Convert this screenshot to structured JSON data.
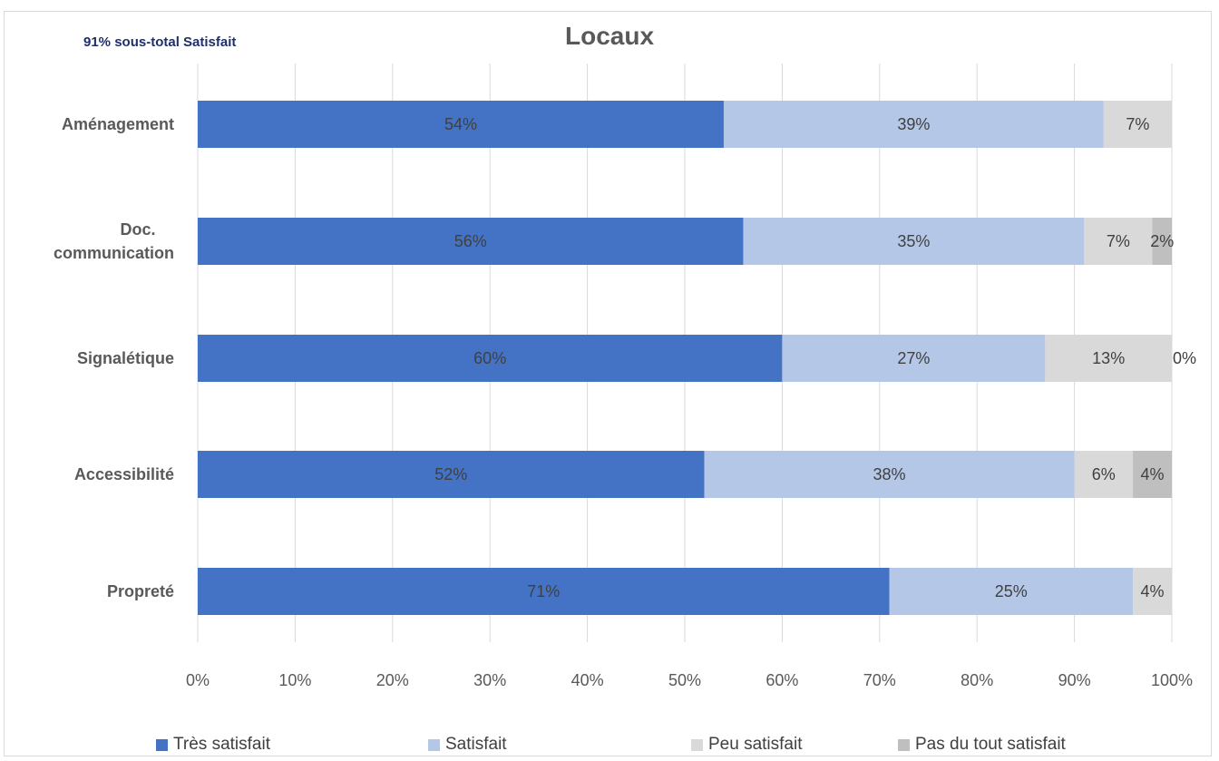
{
  "header": {
    "subtotal": "91% sous-total Satisfait"
  },
  "chart_data": {
    "type": "bar",
    "orientation": "horizontal",
    "stacked": true,
    "title": "Locaux",
    "categories": [
      "Aménagement",
      "Doc. communication",
      "Signalétique",
      "Accessibilité",
      "Propreté"
    ],
    "series": [
      {
        "name": "Très satisfait",
        "color": "#4472c4",
        "values": [
          54,
          56,
          60,
          52,
          71
        ],
        "labels": [
          "54%",
          "56%",
          "60%",
          "52%",
          "71%"
        ]
      },
      {
        "name": "Satisfait",
        "color": "#b4c7e7",
        "values": [
          39,
          35,
          27,
          38,
          25
        ],
        "labels": [
          "39%",
          "35%",
          "27%",
          "38%",
          "25%"
        ]
      },
      {
        "name": "Peu satisfait",
        "color": "#d9d9d9",
        "values": [
          7,
          7,
          13,
          6,
          4
        ],
        "labels": [
          "7%",
          "7%",
          "13%",
          "6%",
          "4%"
        ]
      },
      {
        "name": "Pas du tout satisfait",
        "color": "#bfbfbf",
        "values": [
          0,
          2,
          0,
          4,
          0
        ],
        "labels": [
          "",
          "2%",
          "0%",
          "4%",
          ""
        ]
      }
    ],
    "xlim": [
      0,
      100
    ],
    "xticks": [
      "0%",
      "10%",
      "20%",
      "30%",
      "40%",
      "50%",
      "60%",
      "70%",
      "80%",
      "90%",
      "100%"
    ],
    "grid": true,
    "legend_position": "bottom"
  }
}
